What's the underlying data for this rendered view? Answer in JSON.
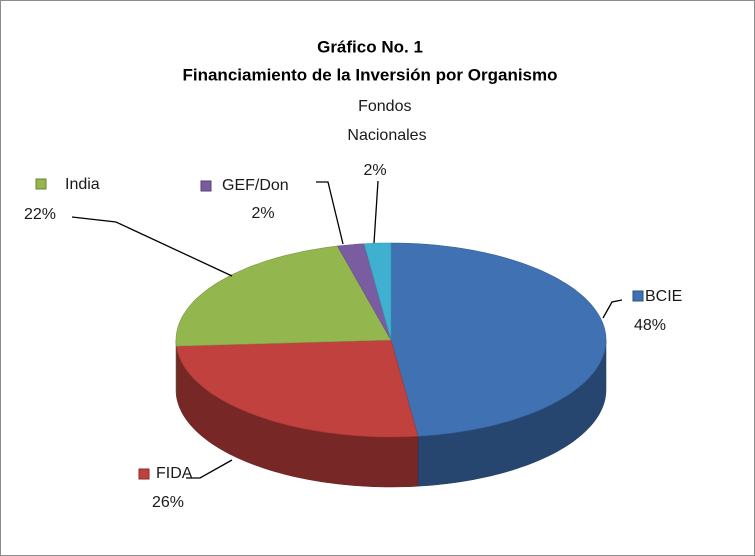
{
  "chart_data": {
    "type": "pie",
    "title": "Gráfico No. 1",
    "subtitle": "Financiamiento de la Inversión por Organismo",
    "categories": [
      "BCIE",
      "FIDA",
      "India",
      "GEF/Don",
      "Fondos Nacionales"
    ],
    "values": [
      48,
      26,
      22,
      2,
      2
    ],
    "value_labels": [
      "48%",
      "26%",
      "22%",
      "2%",
      "2%"
    ],
    "colors": [
      "#3f71b3",
      "#c0413e",
      "#94b64f",
      "#7a5ca0",
      "#3fb0cf"
    ]
  }
}
